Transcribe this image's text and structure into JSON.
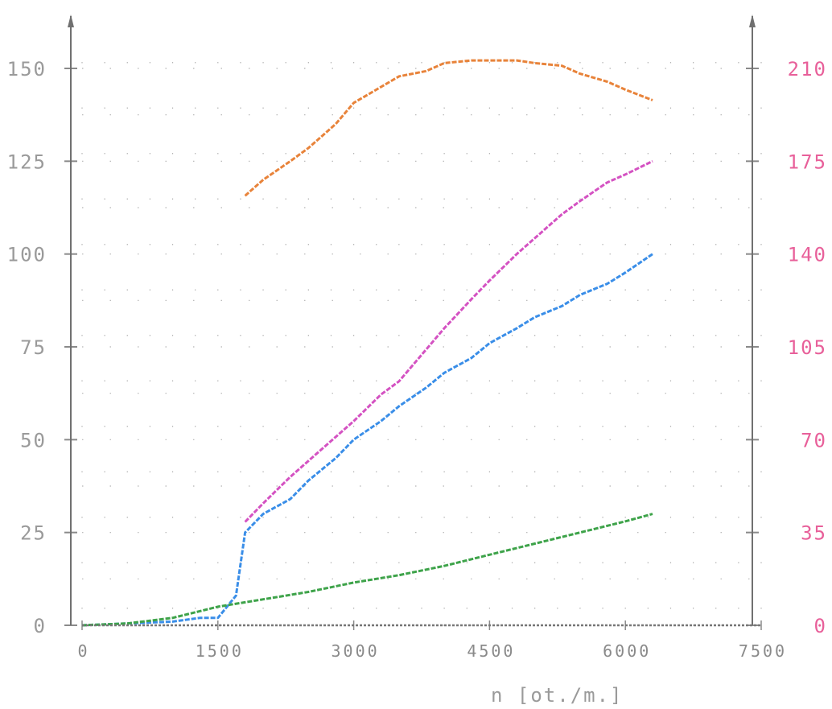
{
  "chart_data": {
    "type": "line",
    "title": "",
    "xlabel": "n [ot./m.]",
    "ylabel_left": "",
    "ylabel_right": "",
    "xlim": [
      0,
      7500
    ],
    "ylim_left": [
      0,
      150
    ],
    "ylim_right": [
      0,
      210
    ],
    "x_ticks": [
      "0",
      "1500",
      "3000",
      "4500",
      "6000",
      "7500"
    ],
    "y_ticks_left": [
      "0",
      "25",
      "50",
      "75",
      "100",
      "125",
      "150"
    ],
    "y_ticks_right": [
      "0",
      "35",
      "70",
      "105",
      "140",
      "175",
      "210"
    ],
    "grid": true,
    "legend": "none",
    "series": [
      {
        "axis": "right",
        "color": "#e8833a",
        "x": [
          1800,
          2000,
          2300,
          2500,
          2800,
          3000,
          3300,
          3500,
          3800,
          4000,
          4300,
          4500,
          4800,
          5000,
          5300,
          5500,
          5800,
          6000,
          6300
        ],
        "y": [
          162,
          168,
          175,
          180,
          189,
          197,
          203,
          207,
          209,
          212,
          213,
          213,
          213,
          212,
          211,
          208,
          205,
          202,
          198
        ]
      },
      {
        "axis": "right",
        "color": "#d452c2",
        "x": [
          1800,
          2000,
          2300,
          2500,
          2800,
          3000,
          3300,
          3500,
          3800,
          4000,
          4300,
          4500,
          4800,
          5000,
          5300,
          5500,
          5800,
          6000,
          6300
        ],
        "y": [
          39,
          46,
          56,
          62,
          71,
          77,
          87,
          92,
          104,
          112,
          123,
          130,
          140,
          146,
          155,
          160,
          167,
          170,
          175
        ]
      },
      {
        "axis": "left",
        "color": "#3a8ee8",
        "x": [
          0,
          500,
          1000,
          1300,
          1500,
          1600,
          1700,
          1800,
          2000,
          2300,
          2500,
          2800,
          3000,
          3300,
          3500,
          3800,
          4000,
          4300,
          4500,
          4800,
          5000,
          5300,
          5500,
          5800,
          6000,
          6300
        ],
        "y": [
          0,
          0.5,
          1,
          2,
          2,
          5,
          8,
          25,
          30,
          34,
          39,
          45,
          50,
          55,
          59,
          64,
          68,
          72,
          76,
          80,
          83,
          86,
          89,
          92,
          95,
          100
        ]
      },
      {
        "axis": "left",
        "color": "#3ea34a",
        "x": [
          0,
          500,
          1000,
          1500,
          2000,
          2500,
          3000,
          3500,
          4000,
          4500,
          5000,
          5500,
          6000,
          6300
        ],
        "y": [
          0,
          0.5,
          2,
          5,
          7,
          9,
          11.5,
          13.5,
          16,
          19,
          22,
          25,
          28,
          30
        ]
      },
      {
        "axis": "left",
        "color": "#777777",
        "x": [
          0,
          7500
        ],
        "y": [
          0,
          0
        ]
      }
    ]
  }
}
